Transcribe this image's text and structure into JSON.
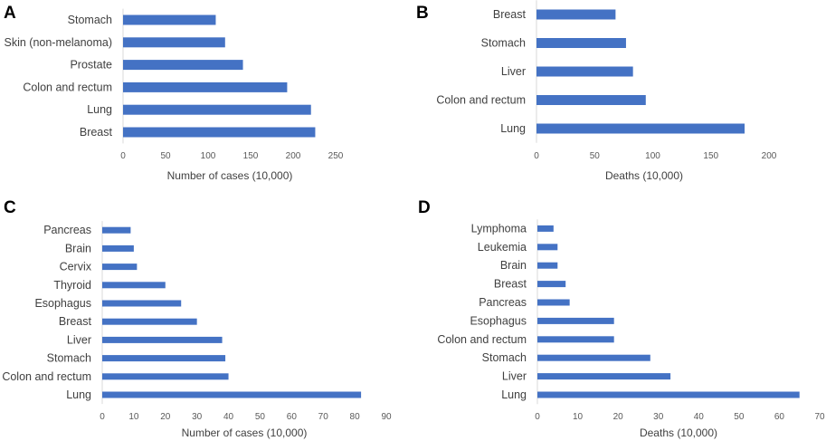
{
  "chart_data": [
    {
      "panel": "A",
      "type": "bar",
      "orientation": "horizontal",
      "categories": [
        "Breast",
        "Lung",
        "Colon and rectum",
        "Prostate",
        "Skin (non-melanoma)",
        "Stomach"
      ],
      "values": [
        226,
        221,
        193,
        141,
        120,
        109
      ],
      "xlabel": "Number of cases (10,000)",
      "xlim": [
        0,
        250
      ],
      "ticks": [
        0,
        50,
        100,
        150,
        200,
        250
      ],
      "color": "#4472C4"
    },
    {
      "panel": "B",
      "type": "bar",
      "orientation": "horizontal",
      "categories": [
        "Lung",
        "Colon and rectum",
        "Liver",
        "Stomach",
        "Breast"
      ],
      "values": [
        179,
        94,
        83,
        77,
        68
      ],
      "xlabel": "Deaths (10,000)",
      "xlim": [
        0,
        200
      ],
      "ticks": [
        0,
        50,
        100,
        150,
        200
      ],
      "color": "#4472C4"
    },
    {
      "panel": "C",
      "type": "bar",
      "orientation": "horizontal",
      "categories": [
        "Lung",
        "Colon and rectum",
        "Stomach",
        "Liver",
        "Breast",
        "Esophagus",
        "Thyroid",
        "Cervix",
        "Brain",
        "Pancreas"
      ],
      "values": [
        82,
        40,
        39,
        38,
        30,
        25,
        20,
        11,
        10,
        9
      ],
      "xlabel": "Number of cases (10,000)",
      "xlim": [
        0,
        90
      ],
      "ticks": [
        0,
        10,
        20,
        30,
        40,
        50,
        60,
        70,
        80,
        90
      ],
      "color": "#4472C4"
    },
    {
      "panel": "D",
      "type": "bar",
      "orientation": "horizontal",
      "categories": [
        "Lung",
        "Liver",
        "Stomach",
        "Colon and rectum",
        "Esophagus",
        "Pancreas",
        "Breast",
        "Brain",
        "Leukemia",
        "Lymphoma"
      ],
      "values": [
        65,
        33,
        28,
        19,
        19,
        8,
        7,
        5,
        5,
        4
      ],
      "xlabel": "Deaths (10,000)",
      "xlim": [
        0,
        70
      ],
      "ticks": [
        0,
        10,
        20,
        30,
        40,
        50,
        60,
        70
      ],
      "color": "#4472C4"
    }
  ]
}
